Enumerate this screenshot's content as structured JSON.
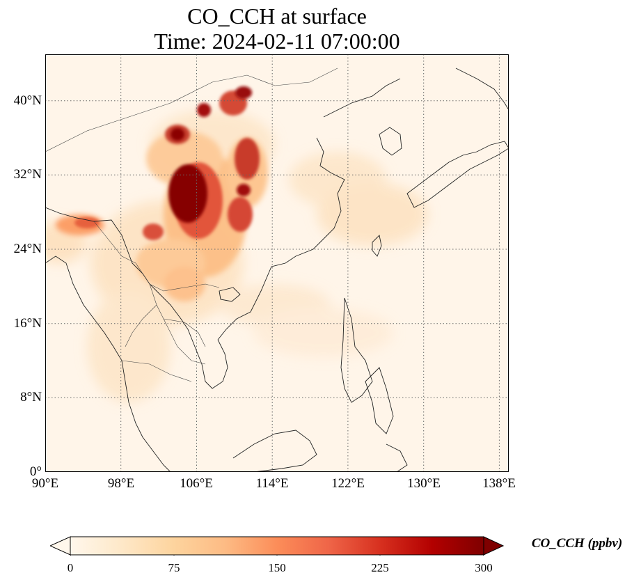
{
  "title": {
    "line1": "CO_CCH at surface",
    "line2": "Time: 2024-02-11 07:00:00"
  },
  "map": {
    "projection": "PlateCarree",
    "lon_range": [
      90,
      139
    ],
    "lat_range": [
      0,
      45
    ],
    "gridlines": "dotted",
    "lat_ticks": [
      "0°",
      "8°N",
      "16°N",
      "24°N",
      "32°N",
      "40°N"
    ],
    "lon_ticks": [
      "90°E",
      "98°E",
      "106°E",
      "114°E",
      "122°E",
      "130°E",
      "138°E"
    ],
    "colormap": "OrRd"
  },
  "colorbar": {
    "label": "CO_CCH (ppbv)",
    "ticks": [
      "0",
      "75",
      "150",
      "225",
      "300"
    ],
    "min": 0,
    "max": 300,
    "extend": "both",
    "colors": [
      "#fff7ec",
      "#fee8c8",
      "#fdd49e",
      "#fdbb84",
      "#fc8d59",
      "#ef6548",
      "#d7301f",
      "#b30000",
      "#7f0000"
    ]
  }
}
